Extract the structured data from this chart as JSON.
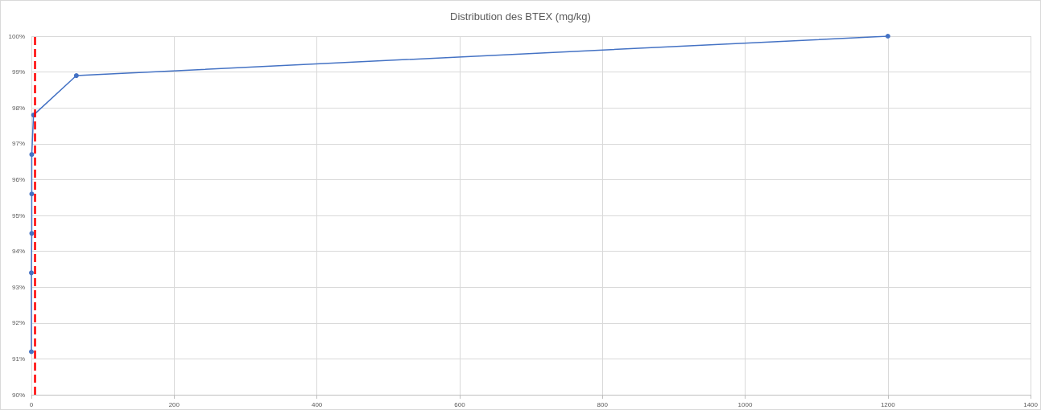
{
  "chart_data": {
    "type": "line",
    "title": "Distribution des BTEX (mg/kg)",
    "x": [
      0,
      0,
      0.5,
      0.5,
      0.5,
      3,
      63,
      1200
    ],
    "series": [
      {
        "color": "#4472c4",
        "values": [
          91.2,
          93.4,
          94.5,
          95.6,
          96.7,
          97.8,
          98.9,
          100
        ]
      }
    ],
    "xlim": [
      0,
      1400
    ],
    "xticks": [
      0,
      200,
      400,
      600,
      800,
      1000,
      1200,
      1400
    ],
    "ylim": [
      90,
      100
    ],
    "yticks": [
      {
        "value": 90,
        "label": "90%"
      },
      {
        "value": 91,
        "label": "91%"
      },
      {
        "value": 92,
        "label": "92%"
      },
      {
        "value": 93,
        "label": "93%"
      },
      {
        "value": 94,
        "label": "94%"
      },
      {
        "value": 95,
        "label": "95%"
      },
      {
        "value": 96,
        "label": "96%"
      },
      {
        "value": 97,
        "label": "97%"
      },
      {
        "value": 98,
        "label": "98%"
      },
      {
        "value": 99,
        "label": "99%"
      },
      {
        "value": 100,
        "label": "100%"
      }
    ],
    "ref_lines": [
      {
        "axis": "x",
        "value": 5,
        "color": "#ff0000",
        "line_style": "dashed"
      }
    ],
    "grid": true,
    "marker": "circle",
    "line_style": "solid"
  }
}
